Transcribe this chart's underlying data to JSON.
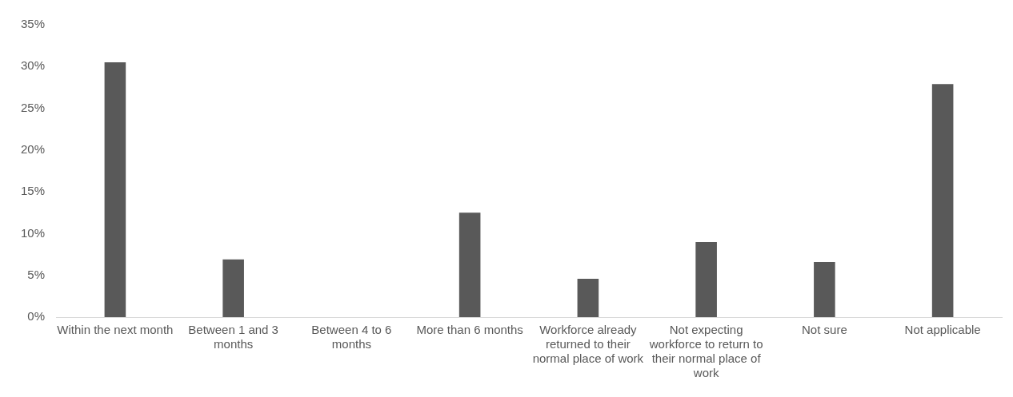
{
  "chart_data": {
    "type": "bar",
    "categories": [
      "Within the next month",
      "Between 1 and 3 months",
      "Between 4 to 6 months",
      "More than 6 months",
      "Workforce already returned to their normal place of work",
      "Not expecting workforce to return to their normal place of work",
      "Not sure",
      "Not applicable"
    ],
    "values": [
      30.5,
      6.9,
      0,
      12.5,
      4.6,
      9.0,
      6.6,
      27.9
    ],
    "color": "#595959",
    "ylim": [
      0,
      35
    ],
    "yticks": [
      {
        "value": 0,
        "label": "0%"
      },
      {
        "value": 5,
        "label": "5%"
      },
      {
        "value": 10,
        "label": "10%"
      },
      {
        "value": 15,
        "label": "15%"
      },
      {
        "value": 20,
        "label": "20%"
      },
      {
        "value": 25,
        "label": "25%"
      },
      {
        "value": 30,
        "label": "30%"
      },
      {
        "value": 35,
        "label": "35%"
      }
    ],
    "grid": false,
    "legend": false
  }
}
